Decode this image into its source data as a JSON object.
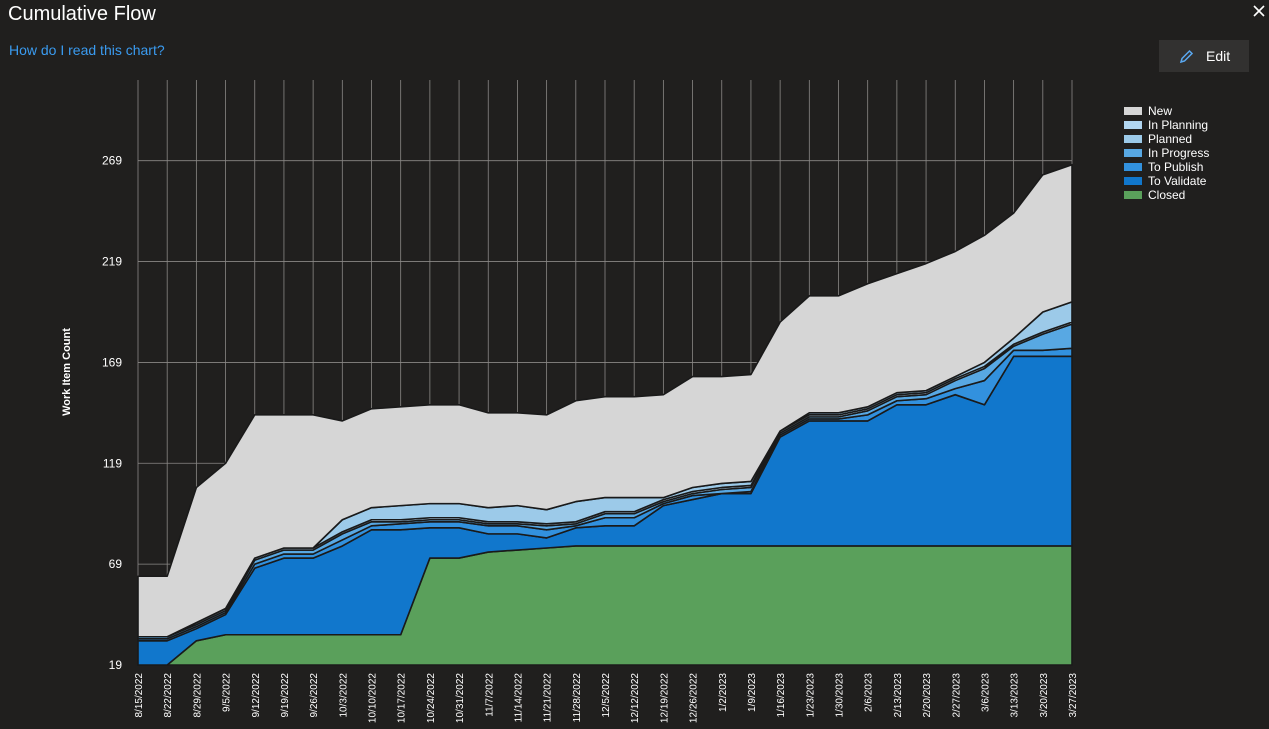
{
  "header": {
    "title": "Cumulative Flow",
    "help_link": "How do I read this chart?",
    "edit_label": "Edit"
  },
  "colors": {
    "New": "#d6d6d6",
    "In Planning": "#b1d6f1",
    "Planned": "#9ccae9",
    "In Progress": "#58a8e3",
    "To Publish": "#3291de",
    "To Validate": "#1177cc",
    "Closed": "#5aa05b"
  },
  "chart_data": {
    "type": "area",
    "stacked": true,
    "ylabel": "Work Item Count",
    "ylim": [
      19,
      309
    ],
    "yticks": [
      19,
      69,
      119,
      169,
      219,
      269
    ],
    "grid": true,
    "legend_position": "top-right",
    "x": [
      "8/15/2022",
      "8/22/2022",
      "8/29/2022",
      "9/5/2022",
      "9/12/2022",
      "9/19/2022",
      "9/26/2022",
      "10/3/2022",
      "10/10/2022",
      "10/17/2022",
      "10/24/2022",
      "10/31/2022",
      "11/7/2022",
      "11/14/2022",
      "11/21/2022",
      "11/28/2022",
      "12/5/2022",
      "12/12/2022",
      "12/19/2022",
      "12/26/2022",
      "1/2/2023",
      "1/9/2023",
      "1/16/2023",
      "1/23/2023",
      "1/30/2023",
      "2/6/2023",
      "2/13/2023",
      "2/20/2023",
      "2/27/2023",
      "3/6/2023",
      "3/13/2023",
      "3/20/2023",
      "3/27/2023"
    ],
    "series": [
      {
        "name": "Closed",
        "values": [
          19,
          19,
          31,
          34,
          34,
          34,
          34,
          34,
          34,
          34,
          72,
          72,
          75,
          76,
          77,
          78,
          78,
          78,
          78,
          78,
          78,
          78,
          78,
          78,
          78,
          78,
          78,
          78,
          78,
          78,
          78,
          78,
          78
        ]
      },
      {
        "name": "To Validate",
        "values": [
          12,
          12,
          6,
          10,
          33,
          38,
          38,
          44,
          52,
          52,
          15,
          15,
          9,
          8,
          5,
          9,
          10,
          10,
          20,
          23,
          26,
          26,
          54,
          62,
          62,
          62,
          70,
          70,
          75,
          70,
          94,
          94,
          94
        ]
      },
      {
        "name": "To Publish",
        "values": [
          1,
          1,
          1,
          1,
          2,
          2,
          2,
          3,
          2,
          3,
          3,
          3,
          4,
          4,
          4,
          1,
          4,
          4,
          1,
          2,
          0,
          1,
          1,
          1,
          1,
          3,
          2,
          3,
          3,
          12,
          3,
          3,
          4
        ]
      },
      {
        "name": "In Progress",
        "values": [
          1,
          1,
          1,
          1,
          2,
          2,
          2,
          3,
          2,
          1,
          1,
          1,
          1,
          1,
          2,
          1,
          2,
          2,
          1,
          1,
          2,
          2,
          1,
          1,
          1,
          2,
          2,
          2,
          4,
          6,
          2,
          8,
          12
        ]
      },
      {
        "name": "In Planning",
        "values": [
          0,
          0,
          1,
          1,
          1,
          1,
          1,
          1,
          1,
          1,
          1,
          1,
          1,
          1,
          1,
          1,
          1,
          1,
          1,
          1,
          1,
          1,
          1,
          1,
          1,
          1,
          1,
          1,
          1,
          1,
          1,
          1,
          1
        ]
      },
      {
        "name": "Planned",
        "values": [
          0,
          0,
          0,
          0,
          0,
          0,
          0,
          6,
          6,
          7,
          7,
          7,
          7,
          8,
          7,
          10,
          7,
          7,
          1,
          2,
          2,
          2,
          0,
          1,
          1,
          1,
          1,
          1,
          1,
          2,
          3,
          10,
          10
        ]
      },
      {
        "name": "New",
        "values": [
          30,
          30,
          67,
          72,
          71,
          66,
          66,
          49,
          49,
          49,
          49,
          49,
          47,
          46,
          47,
          50,
          50,
          50,
          51,
          55,
          53,
          53,
          54,
          58,
          58,
          61,
          59,
          63,
          62,
          63,
          62,
          68,
          68
        ]
      }
    ],
    "legend": [
      "New",
      "In Planning",
      "Planned",
      "In Progress",
      "To Publish",
      "To Validate",
      "Closed"
    ]
  }
}
